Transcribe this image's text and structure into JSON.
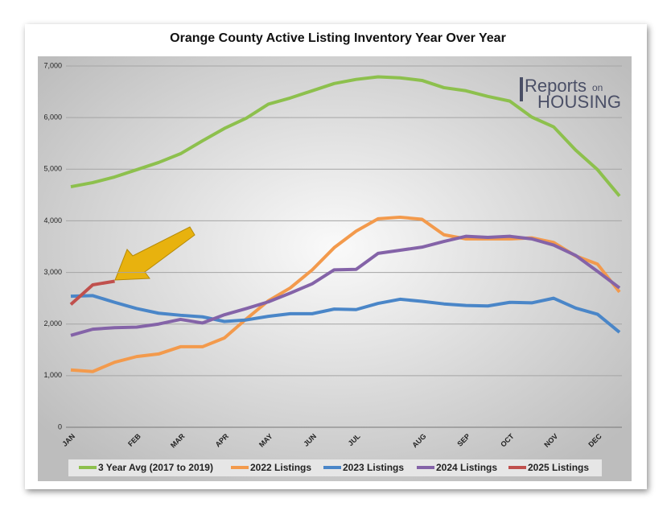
{
  "chart_data": {
    "type": "line",
    "title": "Orange County Active Listing Inventory Year Over Year",
    "logo": {
      "top": "Reports",
      "small": "on",
      "bottom": "HOUSING"
    },
    "categories": [
      "JAN",
      null,
      null,
      "FEB",
      null,
      "MAR",
      null,
      "APR",
      null,
      "MAY",
      null,
      "JUN",
      null,
      "JUL",
      null,
      null,
      "AUG",
      null,
      "SEP",
      null,
      "OCT",
      null,
      "NOV",
      null,
      "DEC",
      null
    ],
    "series": [
      {
        "name": "3 Year Avg (2017 to 2019)",
        "color": "#8dc04d",
        "values": [
          4660,
          4740,
          4850,
          4990,
          5130,
          5300,
          5550,
          5790,
          5990,
          6260,
          6380,
          6520,
          6660,
          6740,
          6790,
          6770,
          6720,
          6580,
          6520,
          6410,
          6320,
          6010,
          5820,
          5370,
          4990,
          4480
        ]
      },
      {
        "name": "2022 Listings",
        "color": "#f39a4c",
        "values": [
          1110,
          1080,
          1260,
          1370,
          1420,
          1560,
          1560,
          1730,
          2100,
          2450,
          2700,
          3050,
          3480,
          3800,
          4040,
          4070,
          4030,
          3730,
          3650,
          3650,
          3650,
          3670,
          3580,
          3320,
          3160,
          2620
        ]
      },
      {
        "name": "2023 Listings",
        "color": "#4a86c8",
        "values": [
          2540,
          2550,
          2420,
          2300,
          2210,
          2170,
          2140,
          2050,
          2080,
          2150,
          2200,
          2200,
          2290,
          2280,
          2400,
          2480,
          2440,
          2390,
          2360,
          2350,
          2420,
          2410,
          2500,
          2310,
          2190,
          1840
        ]
      },
      {
        "name": "2024 Listings",
        "color": "#8463a8",
        "values": [
          1780,
          1900,
          1930,
          1940,
          2000,
          2090,
          2020,
          2180,
          2300,
          2430,
          2600,
          2780,
          3050,
          3060,
          3370,
          3430,
          3490,
          3600,
          3700,
          3680,
          3700,
          3650,
          3530,
          3330,
          3020,
          2700
        ]
      },
      {
        "name": "2025 Listings",
        "color": "#c0504d",
        "values": [
          2380,
          2760,
          2830,
          null,
          null,
          null,
          null,
          null,
          null,
          null,
          null,
          null,
          null,
          null,
          null,
          null,
          null,
          null,
          null,
          null,
          null,
          null,
          null,
          null,
          null,
          null
        ]
      }
    ],
    "ylim": [
      0,
      7000
    ],
    "yticks": [
      0,
      {
        "value": 1000,
        "label": "1,000"
      },
      {
        "value": 2000,
        "label": "2,000"
      },
      {
        "value": 3000,
        "label": "3,000"
      },
      {
        "value": 4000,
        "label": "4,000"
      },
      {
        "value": 5000,
        "label": "5,000"
      },
      {
        "value": 6000,
        "label": "6,000"
      },
      {
        "value": 7000,
        "label": "7,000"
      }
    ],
    "grid": true,
    "legend": "bottom"
  }
}
